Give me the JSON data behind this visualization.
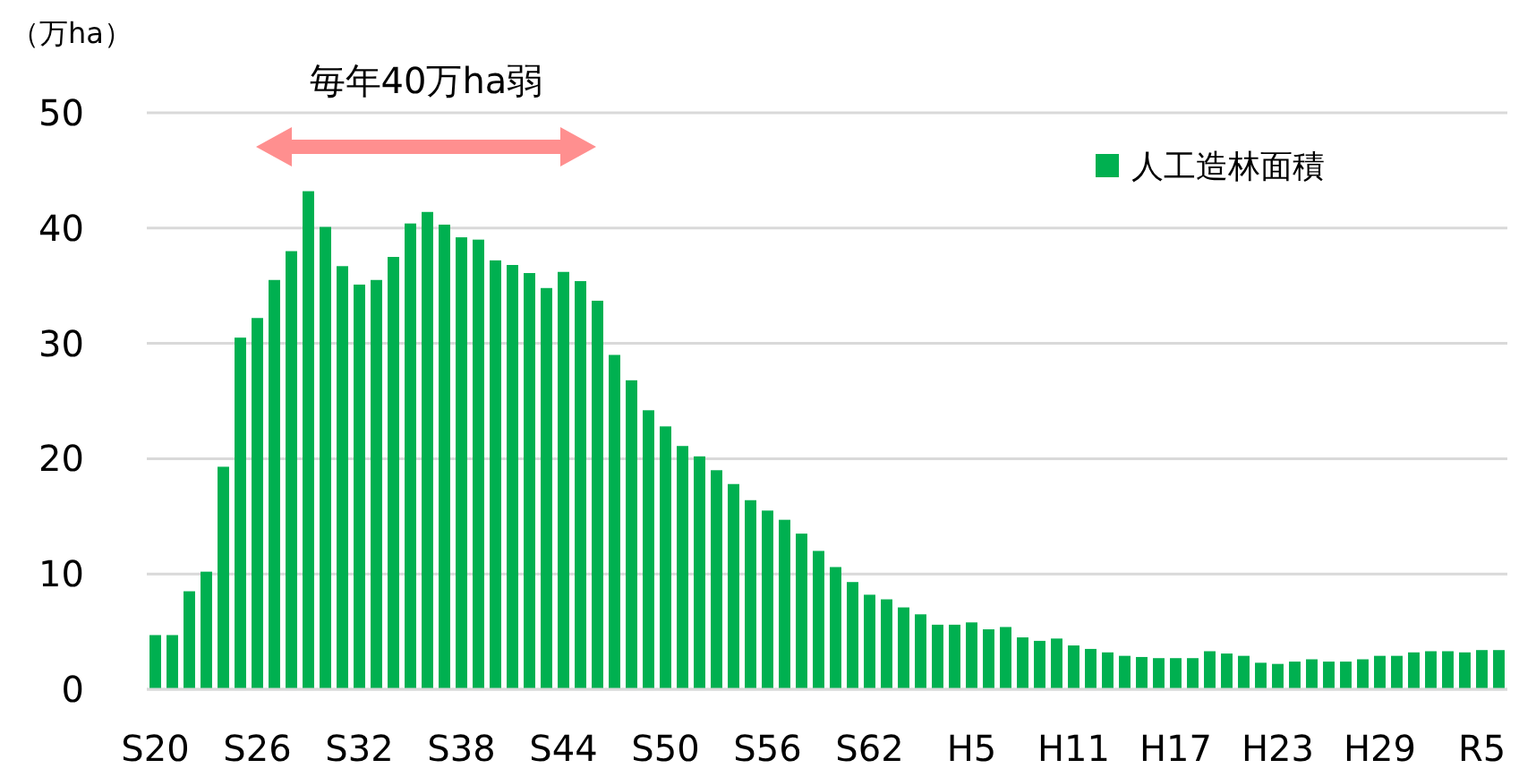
{
  "chart_data": {
    "type": "bar",
    "ylabel": "（万ha）",
    "categories": [
      "S20",
      null,
      null,
      null,
      null,
      null,
      "S26",
      null,
      null,
      null,
      null,
      null,
      "S32",
      null,
      null,
      null,
      null,
      null,
      "S38",
      null,
      null,
      null,
      null,
      null,
      "S44",
      null,
      null,
      null,
      null,
      null,
      "S50",
      null,
      null,
      null,
      null,
      null,
      "S56",
      null,
      null,
      null,
      null,
      null,
      "S62",
      null,
      null,
      null,
      null,
      null,
      "H5",
      null,
      null,
      null,
      null,
      null,
      "H11",
      null,
      null,
      null,
      null,
      null,
      "H17",
      null,
      null,
      null,
      null,
      null,
      "H23",
      null,
      null,
      null,
      null,
      null,
      "H29",
      null,
      null,
      null,
      null,
      null,
      "R5",
      null
    ],
    "series": [
      {
        "name": "人工造林面積",
        "color": "#00b050",
        "values": [
          4.7,
          4.7,
          8.5,
          10.2,
          19.3,
          30.5,
          32.2,
          35.5,
          38.0,
          43.2,
          40.1,
          36.7,
          35.1,
          35.5,
          37.5,
          40.4,
          41.4,
          40.3,
          39.2,
          39.0,
          37.2,
          36.8,
          36.1,
          34.8,
          36.2,
          35.4,
          33.7,
          29.0,
          26.8,
          24.2,
          22.8,
          21.1,
          20.2,
          19.0,
          17.8,
          16.4,
          15.5,
          14.7,
          13.5,
          12.0,
          10.6,
          9.3,
          8.2,
          7.8,
          7.1,
          6.5,
          5.6,
          5.6,
          5.8,
          5.2,
          5.4,
          4.5,
          4.2,
          4.4,
          3.8,
          3.5,
          3.2,
          2.9,
          2.8,
          2.7,
          2.7,
          2.7,
          3.3,
          3.1,
          2.9,
          2.3,
          2.2,
          2.4,
          2.6,
          2.4,
          2.4,
          2.6,
          2.9,
          2.9,
          3.2,
          3.3,
          3.3,
          3.2,
          3.4,
          3.4
        ]
      }
    ],
    "ylim": [
      0,
      50
    ],
    "yticks": [
      0,
      10,
      20,
      30,
      40,
      50
    ],
    "grid": "y",
    "legend": "top right",
    "annotations": [
      "毎年40万ha弱"
    ]
  }
}
